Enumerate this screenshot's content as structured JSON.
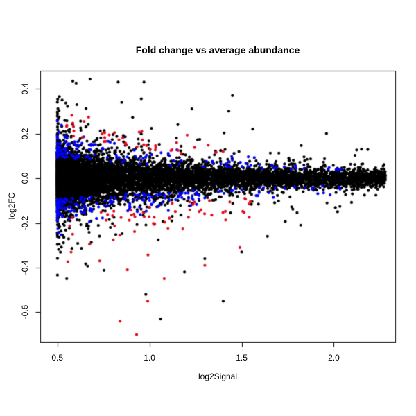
{
  "figure": {
    "background": "#ffffff",
    "text_color": "#000000"
  },
  "chart_data": {
    "type": "scatter",
    "title": "Fold change vs average abundance",
    "xlabel": "log2Signal",
    "ylabel": "log2FC",
    "xlim": [
      0.407,
      2.333
    ],
    "ylim": [
      -0.732,
      0.481
    ],
    "x_ticks": [
      0.5,
      1.0,
      1.5,
      2.0
    ],
    "x_tick_labels": [
      "0.5",
      "1.0",
      "1.5",
      "2.0"
    ],
    "y_ticks": [
      0.4,
      0.2,
      0.0,
      -0.2,
      -0.4,
      -0.6
    ],
    "y_tick_labels": [
      "0.4",
      "0.2",
      "0.0",
      "-0.2",
      "-0.4",
      "-0.6"
    ],
    "grid": false,
    "legend": null,
    "frame": true,
    "point_radius": 2.1,
    "colors": {
      "black_points": "#000000",
      "blue_points": "#0000ff",
      "red_points": "#e30b1e",
      "axis": "#000000"
    },
    "description": "MA plot: dense black cloud of points funneling right from x=0.5 to x=2.3 centered on log2FC=0; blue points band the upper/lower edges of the core; red points sit further out, clustered near +0.15..+0.25 above and scattered from -0.15 down to -0.7 below.",
    "generator": {
      "seed": 20140124,
      "x_sample": {
        "min": 0.5,
        "span": 1.78,
        "power": 2.8
      },
      "sigma_of_x": {
        "base": 0.012,
        "amp": 0.05,
        "decay": 1.1
      },
      "series": [
        {
          "name": "black-points",
          "color": "#000000",
          "n": 9000,
          "kind": "core",
          "tail_mix": [
            0.9,
            0.99
          ],
          "tail_scale": [
            1.0,
            2.2,
            4.0
          ],
          "y_clip": 0.46
        },
        {
          "name": "blue-points",
          "color": "#0000ff",
          "n": 340,
          "kind": "band",
          "offset": 1.5,
          "spread": 1.0,
          "frac_up": 0.46,
          "x_max": 2.05
        },
        {
          "name": "red-points-up",
          "color": "#e30b1e",
          "n": 42,
          "kind": "band-up",
          "x_base": 0.55,
          "x_span": 0.9,
          "x_power": 1.6,
          "offset": 3.1,
          "spread": 0.9
        },
        {
          "name": "red-points-down",
          "color": "#e30b1e",
          "n": 58,
          "kind": "band-down",
          "x_base": 0.55,
          "x_span": 1.0,
          "x_power": 1.3,
          "offset": 3.0,
          "spread": 2.2
        }
      ],
      "extra_points": {
        "black": [
          [
            0.83,
            0.43
          ],
          [
            0.97,
            0.43
          ],
          [
            1.45,
            0.37
          ],
          [
            1.23,
            0.31
          ],
          [
            1.43,
            0.3
          ],
          [
            1.56,
            0.22
          ],
          [
            1.96,
            0.2
          ],
          [
            2.15,
            0.13
          ],
          [
            0.98,
            -0.52
          ],
          [
            1.4,
            -0.55
          ],
          [
            1.06,
            -0.63
          ],
          [
            1.19,
            -0.42
          ],
          [
            1.5,
            -0.33
          ],
          [
            1.82,
            -0.21
          ],
          [
            2.02,
            -0.15
          ],
          [
            1.64,
            -0.26
          ],
          [
            1.3,
            -0.36
          ]
        ],
        "red": [
          [
            0.93,
            -0.7
          ],
          [
            0.84,
            -0.64
          ],
          [
            0.99,
            -0.55
          ],
          [
            1.08,
            -0.45
          ],
          [
            1.49,
            -0.31
          ],
          [
            1.3,
            -0.39
          ],
          [
            0.73,
            -0.37
          ],
          [
            0.88,
            -0.41
          ]
        ]
      }
    }
  }
}
